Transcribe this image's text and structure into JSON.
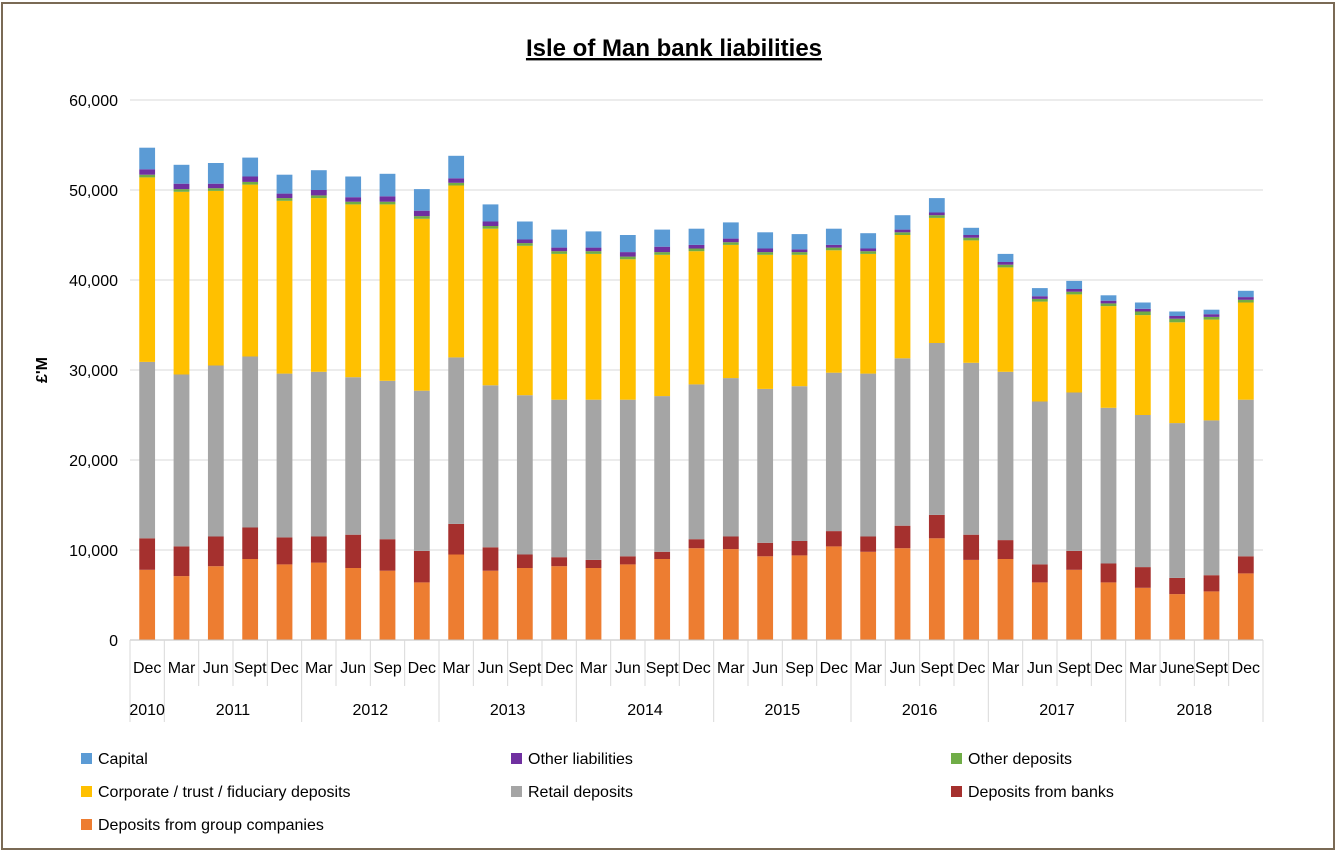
{
  "chart_data": {
    "type": "bar",
    "stacked": true,
    "title": "Isle of Man bank liabilities",
    "ylabel": "£'M",
    "xlabel": "",
    "ylim": [
      0,
      60000
    ],
    "yticks": [
      "0",
      "10,000",
      "20,000",
      "30,000",
      "40,000",
      "50,000",
      "60,000"
    ],
    "ytick_values": [
      0,
      10000,
      20000,
      30000,
      40000,
      50000,
      60000
    ],
    "grid": true,
    "legend_position": "bottom",
    "categories": [
      "Dec",
      "Mar",
      "Jun",
      "Sept",
      "Dec",
      "Mar",
      "Jun",
      "Sep",
      "Dec",
      "Mar",
      "Jun",
      "Sept",
      "Dec",
      "Mar",
      "Jun",
      "Sept",
      "Dec",
      "Mar",
      "Jun",
      "Sep",
      "Dec",
      "Mar",
      "Jun",
      "Sept",
      "Dec",
      "Mar",
      "Jun",
      "Sept",
      "Dec",
      "Mar",
      "June",
      "Sept",
      "Dec"
    ],
    "year_labels": [
      {
        "label": "2010",
        "index": 0
      },
      {
        "label": "2011",
        "index": 2.5
      },
      {
        "label": "2012",
        "index": 6.5
      },
      {
        "label": "2013",
        "index": 10.5
      },
      {
        "label": "2014",
        "index": 14.5
      },
      {
        "label": "2015",
        "index": 18.5
      },
      {
        "label": "2016",
        "index": 22.5
      },
      {
        "label": "2017",
        "index": 26.5
      },
      {
        "label": "2018",
        "index": 30.5
      }
    ],
    "year_separators_after": [
      0,
      4,
      8,
      12,
      16,
      20,
      24,
      28
    ],
    "series": [
      {
        "name": "Deposits from group companies",
        "color": "#ED7D31",
        "values": [
          7800,
          7100,
          8200,
          9000,
          8400,
          8600,
          8000,
          7700,
          6400,
          9500,
          7700,
          8000,
          8200,
          8000,
          8400,
          9000,
          10200,
          10100,
          9300,
          9400,
          10400,
          9800,
          10200,
          11300,
          8900,
          9000,
          6400,
          7800,
          6400,
          5800,
          5100,
          5400,
          7400
        ]
      },
      {
        "name": "Deposits from banks",
        "color": "#A5302E",
        "values": [
          3500,
          3300,
          3300,
          3500,
          3000,
          2900,
          3700,
          3500,
          3500,
          3400,
          2600,
          1500,
          1000,
          900,
          900,
          800,
          1000,
          1400,
          1500,
          1600,
          1700,
          1700,
          2500,
          2600,
          2800,
          2100,
          2000,
          2100,
          2100,
          2300,
          1800,
          1800,
          1900
        ]
      },
      {
        "name": "Retail deposits",
        "color": "#A5A5A5",
        "values": [
          19600,
          19100,
          19000,
          19000,
          18200,
          18300,
          17500,
          17600,
          17800,
          18500,
          18000,
          17700,
          17500,
          17800,
          17400,
          17300,
          17200,
          17600,
          17100,
          17200,
          17600,
          18100,
          18600,
          19100,
          19100,
          18700,
          18100,
          17600,
          17300,
          16900,
          17200,
          17200,
          17400
        ]
      },
      {
        "name": "Corporate / trust / fiduciary deposits",
        "color": "#FFC000",
        "values": [
          20500,
          20300,
          19400,
          19100,
          19200,
          19300,
          19200,
          19600,
          19100,
          19100,
          17400,
          16600,
          16200,
          16200,
          15600,
          15700,
          14800,
          14800,
          14900,
          14600,
          13600,
          13300,
          13700,
          13900,
          13600,
          11600,
          11100,
          10900,
          11300,
          11100,
          11200,
          11200,
          10800
        ]
      },
      {
        "name": "Other deposits",
        "color": "#70AD47",
        "values": [
          300,
          300,
          300,
          300,
          300,
          300,
          300,
          300,
          300,
          300,
          300,
          300,
          300,
          300,
          300,
          300,
          300,
          300,
          300,
          300,
          300,
          300,
          300,
          300,
          300,
          300,
          300,
          300,
          300,
          400,
          400,
          300,
          300
        ]
      },
      {
        "name": "Other liabilities",
        "color": "#7030A0",
        "values": [
          600,
          600,
          500,
          600,
          500,
          600,
          500,
          600,
          600,
          500,
          500,
          400,
          400,
          400,
          500,
          600,
          400,
          400,
          400,
          300,
          300,
          300,
          300,
          300,
          300,
          300,
          300,
          300,
          300,
          300,
          300,
          300,
          300
        ]
      },
      {
        "name": "Capital",
        "color": "#5B9BD5",
        "values": [
          2400,
          2100,
          2300,
          2100,
          2100,
          2200,
          2300,
          2500,
          2400,
          2500,
          1900,
          2000,
          2000,
          1800,
          1900,
          1900,
          1800,
          1800,
          1800,
          1700,
          1800,
          1700,
          1600,
          1600,
          800,
          900,
          900,
          900,
          600,
          700,
          500,
          500,
          700
        ]
      }
    ],
    "legend": [
      {
        "label": "Capital",
        "color": "#5B9BD5"
      },
      {
        "label": "Other liabilities",
        "color": "#7030A0"
      },
      {
        "label": "Other deposits",
        "color": "#70AD47"
      },
      {
        "label": "Corporate / trust / fiduciary deposits",
        "color": "#FFC000"
      },
      {
        "label": "Retail deposits",
        "color": "#A5A5A5"
      },
      {
        "label": "Deposits from banks",
        "color": "#A5302E"
      },
      {
        "label": "Deposits from group companies",
        "color": "#ED7D31"
      }
    ]
  }
}
